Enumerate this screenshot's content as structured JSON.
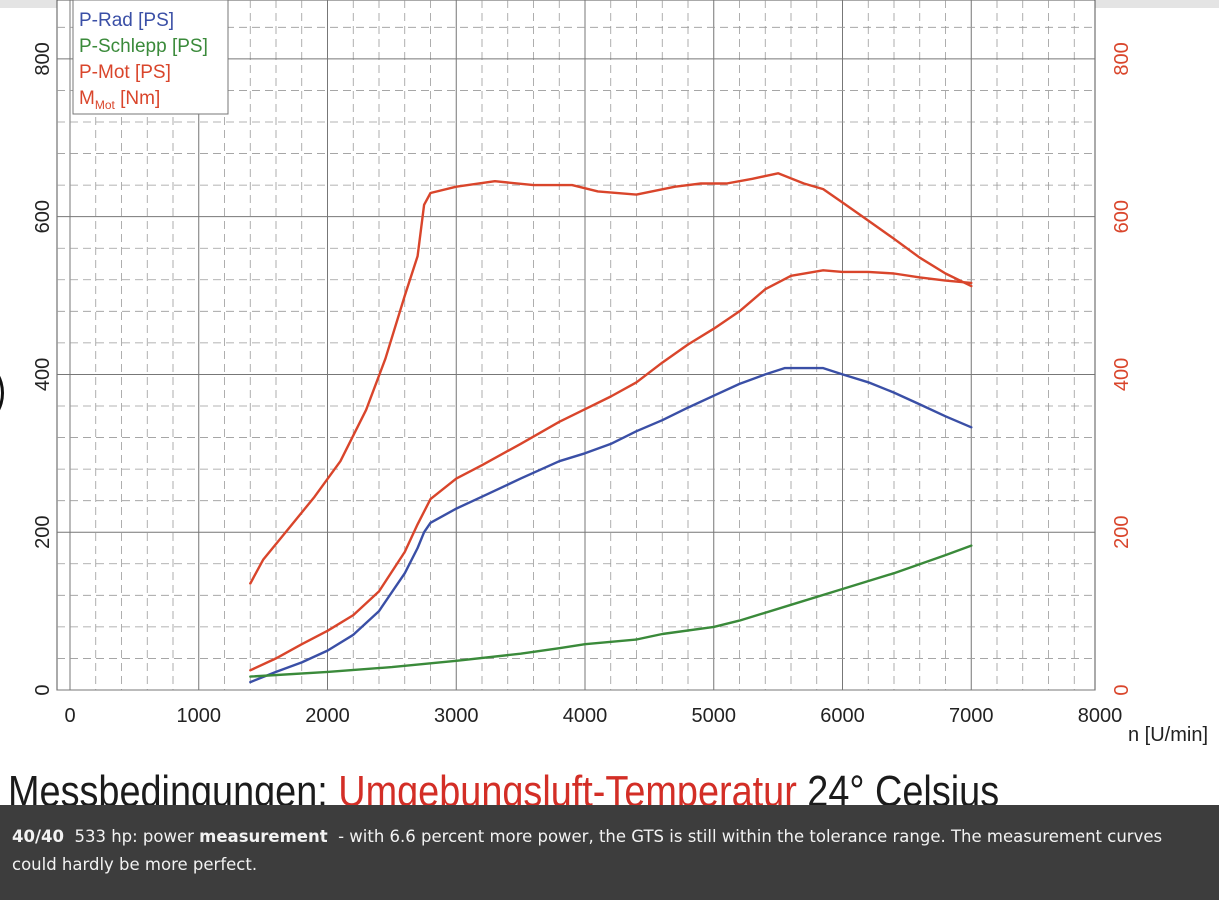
{
  "chart_data": {
    "type": "line",
    "xlabel": "n [U/min]",
    "x_ticks": [
      "0",
      "1000",
      "2000",
      "3000",
      "4000",
      "5000",
      "6000",
      "7000",
      "8000"
    ],
    "xlim": [
      0,
      8000
    ],
    "ylim": [
      0,
      900
    ],
    "y_ticks_left": [
      "0",
      "200",
      "400",
      "600",
      "800"
    ],
    "y_ticks_right": [
      "0",
      "200",
      "400",
      "600",
      "800"
    ],
    "grid": true,
    "legend_position": "top-left",
    "legend": [
      {
        "label": "P-Rad [PS]",
        "color": "#3a4fa6"
      },
      {
        "label": "P-Schlepp [PS]",
        "color": "#3a8a3a"
      },
      {
        "label": "P-Mot [PS]",
        "color": "#d9452b"
      },
      {
        "label_main": "M",
        "label_sub": "Mot",
        "label_rest": " [Nm]",
        "color": "#d9452b"
      }
    ],
    "series": [
      {
        "name": "P-Rad [PS]",
        "color": "#3a4fa6",
        "x": [
          1400,
          1600,
          1800,
          2000,
          2200,
          2400,
          2600,
          2700,
          2750,
          2800,
          3000,
          3200,
          3500,
          3800,
          4000,
          4200,
          4400,
          4600,
          4800,
          5000,
          5200,
          5400,
          5550,
          5700,
          5850,
          6000,
          6200,
          6400,
          6600,
          6800,
          7000
        ],
        "y": [
          10,
          23,
          35,
          50,
          70,
          100,
          148,
          180,
          200,
          212,
          230,
          245,
          268,
          290,
          300,
          312,
          328,
          342,
          358,
          373,
          388,
          400,
          408,
          408,
          408,
          400,
          390,
          377,
          362,
          347,
          333
        ]
      },
      {
        "name": "P-Schlepp [PS]",
        "color": "#3a8a3a",
        "x": [
          1400,
          2000,
          2500,
          3000,
          3500,
          3800,
          4000,
          4400,
          4600,
          5000,
          5200,
          5600,
          6000,
          6400,
          6800,
          7000
        ],
        "y": [
          17,
          23,
          29,
          37,
          46,
          53,
          58,
          64,
          71,
          80,
          88,
          108,
          128,
          148,
          171,
          183
        ]
      },
      {
        "name": "P-Mot [PS]",
        "color": "#d9452b",
        "x": [
          1400,
          1600,
          1800,
          2000,
          2200,
          2400,
          2600,
          2700,
          2800,
          3000,
          3200,
          3500,
          3800,
          4000,
          4200,
          4400,
          4600,
          4800,
          5000,
          5200,
          5400,
          5600,
          5850,
          6000,
          6200,
          6400,
          6600,
          6800,
          7000
        ],
        "y": [
          25,
          40,
          58,
          75,
          95,
          125,
          175,
          210,
          242,
          268,
          285,
          312,
          340,
          356,
          372,
          390,
          415,
          438,
          458,
          480,
          508,
          525,
          532,
          530,
          530,
          528,
          523,
          519,
          516
        ]
      },
      {
        "name": "M_Mot [Nm]",
        "color": "#d9452b",
        "x": [
          1400,
          1500,
          1700,
          1900,
          2100,
          2300,
          2450,
          2600,
          2700,
          2750,
          2800,
          3000,
          3300,
          3600,
          3900,
          4100,
          4400,
          4700,
          4900,
          5100,
          5300,
          5500,
          5700,
          5850,
          6000,
          6200,
          6400,
          6600,
          6800,
          7000
        ],
        "y": [
          135,
          165,
          205,
          245,
          290,
          355,
          420,
          500,
          550,
          615,
          630,
          638,
          645,
          640,
          640,
          632,
          628,
          638,
          642,
          642,
          648,
          655,
          642,
          635,
          618,
          595,
          572,
          548,
          528,
          512
        ]
      }
    ]
  },
  "heading": {
    "part1": "Messbedingungen: ",
    "part2": "Umgebungsluft-Temperatur",
    "part3": " 24° Celsius"
  },
  "caption": {
    "counter": "40/40",
    "text_before": "533 hp: power ",
    "bold": "measurement",
    "text_after": " - with 6.6 percent more power, the GTS is still within the tolerance range. The measurement curves could hardly be more perfect."
  },
  "colors": {
    "left_axis": "#222222",
    "right_axis": "#d9452b",
    "caption_bg": "#3d3d3d"
  }
}
